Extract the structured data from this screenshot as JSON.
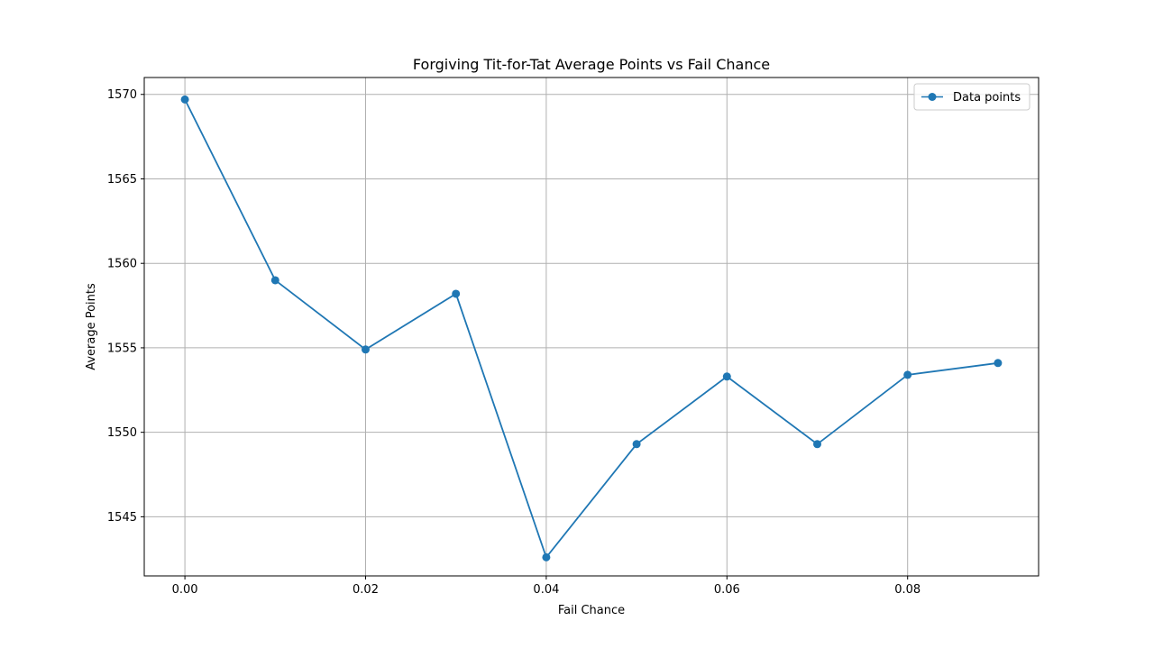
{
  "chart_data": {
    "type": "line",
    "title": "Forgiving Tit-for-Tat Average Points vs Fail Chance",
    "xlabel": "Fail Chance",
    "ylabel": "Average Points",
    "xlim": [
      -0.0045,
      0.0945
    ],
    "ylim": [
      1541.5,
      1571.0
    ],
    "xticks": [
      0.0,
      0.02,
      0.04,
      0.06,
      0.08
    ],
    "xtick_labels": [
      "0.00",
      "0.02",
      "0.04",
      "0.06",
      "0.08"
    ],
    "yticks": [
      1545,
      1550,
      1555,
      1560,
      1565,
      1570
    ],
    "ytick_labels": [
      "1545",
      "1550",
      "1555",
      "1560",
      "1565",
      "1570"
    ],
    "grid": true,
    "legend_position": "top-right",
    "series": [
      {
        "name": "Data points",
        "color": "#1f77b4",
        "marker": "circle",
        "x": [
          0.0,
          0.01,
          0.02,
          0.03,
          0.04,
          0.05,
          0.06,
          0.07,
          0.08,
          0.09
        ],
        "y": [
          1569.7,
          1559.0,
          1554.9,
          1558.2,
          1542.6,
          1549.3,
          1553.3,
          1549.3,
          1553.4,
          1554.1
        ]
      }
    ]
  }
}
